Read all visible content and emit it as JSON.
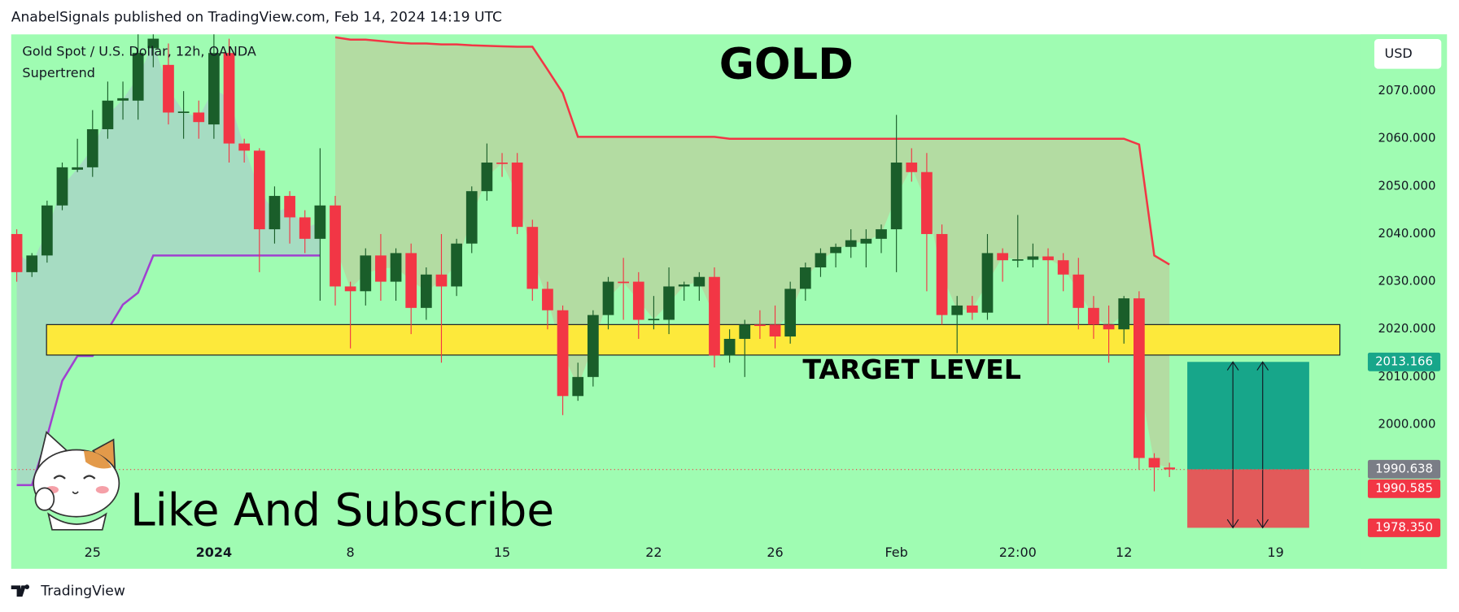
{
  "chart_data": {
    "type": "candlestick",
    "header": "AnabelSignals published on TradingView.com, Feb 14, 2024 14:19 UTC",
    "instrument": "Gold Spot / U.S. Dollar, 12h, OANDA",
    "indicator": "Supertrend",
    "title": "GOLD",
    "caption": "Like And Subscribe",
    "currency": "USD",
    "footer": "TradingView",
    "up_color": "#1a5e2a",
    "down_color": "#f23645",
    "background": "#9ffcb2",
    "ylim": [
      1975.6,
      2081.9
    ],
    "yticks": [
      {
        "value": 2000,
        "label": "2000.000"
      },
      {
        "value": 2010,
        "label": "2010.000"
      },
      {
        "value": 2020,
        "label": "2020.000"
      },
      {
        "value": 2030,
        "label": "2030.000"
      },
      {
        "value": 2040,
        "label": "2040.000"
      },
      {
        "value": 2050,
        "label": "2050.000"
      },
      {
        "value": 2060,
        "label": "2060.000"
      },
      {
        "value": 2070,
        "label": "2070.000"
      }
    ],
    "categories": [
      null,
      null,
      null,
      null,
      null,
      "25",
      null,
      null,
      null,
      null,
      null,
      null,
      null,
      "2024",
      null,
      null,
      null,
      null,
      null,
      null,
      null,
      null,
      "8",
      null,
      null,
      null,
      null,
      null,
      null,
      null,
      null,
      null,
      "15",
      null,
      null,
      null,
      null,
      null,
      null,
      null,
      null,
      null,
      "22",
      null,
      null,
      null,
      null,
      null,
      null,
      null,
      "26",
      null,
      null,
      null,
      null,
      null,
      null,
      null,
      "Feb",
      null,
      null,
      null,
      null,
      null,
      null,
      null,
      "22:00",
      null,
      null,
      null,
      null,
      null,
      null,
      "12",
      null,
      null,
      null,
      null,
      null,
      null,
      null,
      null,
      null,
      "19",
      null,
      null,
      null,
      null,
      null,
      null
    ],
    "candles": [
      [
        2040,
        2041,
        2030,
        2032
      ],
      [
        2032,
        2036,
        2031,
        2035.5
      ],
      [
        2035.5,
        2047,
        2034,
        2046
      ],
      [
        2046,
        2055,
        2045,
        2054
      ],
      [
        2053.5,
        2060,
        2053,
        2054
      ],
      [
        2054,
        2066,
        2052,
        2062
      ],
      [
        2062,
        2072,
        2060,
        2068
      ],
      [
        2068,
        2072,
        2064,
        2068.5
      ],
      [
        2068,
        2083,
        2064,
        2078
      ],
      [
        2079,
        2086,
        2075,
        2081
      ],
      [
        2075.5,
        2080,
        2063,
        2065.5
      ],
      [
        2065.5,
        2070,
        2060,
        2065.7
      ],
      [
        2065.5,
        2068,
        2060,
        2063.5
      ],
      [
        2063,
        2082,
        2060,
        2078
      ],
      [
        2078,
        2081,
        2055,
        2059
      ],
      [
        2059,
        2060,
        2055,
        2057.5
      ],
      [
        2057.5,
        2058,
        2032,
        2041
      ],
      [
        2041,
        2050,
        2038,
        2048
      ],
      [
        2048,
        2049,
        2038,
        2043.5
      ],
      [
        2043.5,
        2045,
        2036,
        2039
      ],
      [
        2039,
        2058,
        2026,
        2046
      ],
      [
        2046,
        2048,
        2025,
        2029
      ],
      [
        2029,
        2030,
        2016,
        2028
      ],
      [
        2028,
        2037,
        2025,
        2035.5
      ],
      [
        2035.5,
        2040,
        2026,
        2030
      ],
      [
        2030,
        2037,
        2026,
        2036
      ],
      [
        2036,
        2038,
        2019,
        2024.5
      ],
      [
        2024.5,
        2033,
        2022,
        2031.5
      ],
      [
        2031.5,
        2040,
        2013,
        2029
      ],
      [
        2029,
        2039,
        2027,
        2038
      ],
      [
        2038,
        2050,
        2036,
        2049
      ],
      [
        2049,
        2059,
        2047,
        2055
      ],
      [
        2055,
        2057,
        2052,
        2054.8
      ],
      [
        2055,
        2057,
        2040,
        2041.5
      ],
      [
        2041.5,
        2043,
        2026,
        2028.5
      ],
      [
        2028.5,
        2030,
        2020,
        2024
      ],
      [
        2024,
        2025,
        2002,
        2006
      ],
      [
        2006,
        2013,
        2005,
        2010
      ],
      [
        2010,
        2024,
        2008,
        2023
      ],
      [
        2023,
        2031,
        2020,
        2030
      ],
      [
        2030,
        2035,
        2022,
        2029.8
      ],
      [
        2030,
        2032,
        2018,
        2022
      ],
      [
        2022,
        2027,
        2020,
        2022.2
      ],
      [
        2022,
        2033,
        2019,
        2029
      ],
      [
        2029,
        2030,
        2026,
        2029.4
      ],
      [
        2029,
        2032,
        2026,
        2031
      ],
      [
        2031,
        2033,
        2012,
        2014.5
      ],
      [
        2014.5,
        2020,
        2013,
        2018
      ],
      [
        2018,
        2022,
        2010,
        2021
      ],
      [
        2021,
        2024,
        2018,
        2020.8
      ],
      [
        2021,
        2025,
        2016,
        2018.5
      ],
      [
        2018.5,
        2030,
        2017,
        2028.5
      ],
      [
        2028.5,
        2034,
        2026,
        2033
      ],
      [
        2033,
        2037,
        2031,
        2036
      ],
      [
        2036,
        2038,
        2033,
        2037.3
      ],
      [
        2037.3,
        2041,
        2035,
        2038.7
      ],
      [
        2038,
        2041,
        2033,
        2039
      ],
      [
        2039,
        2042,
        2036,
        2041
      ],
      [
        2041,
        2065,
        2032,
        2055
      ],
      [
        2055,
        2058,
        2051,
        2053
      ],
      [
        2053,
        2057,
        2028,
        2040
      ],
      [
        2040,
        2042,
        2021,
        2023
      ],
      [
        2023,
        2027,
        2015,
        2025
      ],
      [
        2025,
        2027,
        2022,
        2023.5
      ],
      [
        2023.5,
        2040,
        2022,
        2036
      ],
      [
        2036,
        2037,
        2030,
        2034.5
      ],
      [
        2034.5,
        2044,
        2033,
        2034.7
      ],
      [
        2034.6,
        2038,
        2033,
        2035.3
      ],
      [
        2035.3,
        2037,
        2021,
        2034.5
      ],
      [
        2034.5,
        2036,
        2028,
        2031.5
      ],
      [
        2031.5,
        2035,
        2020,
        2024.5
      ],
      [
        2024.5,
        2027,
        2018,
        2021
      ],
      [
        2021,
        2025,
        2013,
        2020
      ],
      [
        2020,
        2027,
        2017,
        2026.5
      ],
      [
        2026.5,
        2028,
        1990.5,
        1993
      ],
      [
        1993,
        1994,
        1986,
        1991
      ],
      [
        1991,
        1992,
        1989,
        1990.6
      ],
      null,
      null,
      null,
      null,
      null,
      null,
      null,
      null,
      null,
      null,
      null,
      null
    ],
    "supertrend_up": {
      "color": "#a040d0",
      "fill": "#a6dcc2",
      "values": [
        1987.3,
        1987.3,
        1997.5,
        2009.2,
        2014.4,
        2014.4,
        2019.9,
        2025.2,
        2027.7,
        2035.5,
        2035.5,
        2035.5,
        2035.5,
        2035.5,
        2035.5,
        2035.5,
        2035.5,
        2035.5,
        2035.5,
        2035.5,
        2035.5,
        null,
        null,
        null,
        null,
        null,
        null,
        null,
        null,
        null,
        null,
        null,
        null,
        null,
        null,
        null,
        null,
        null,
        null,
        null,
        null,
        null,
        null,
        null,
        null,
        null,
        null,
        null,
        null,
        null,
        null,
        null,
        null,
        null,
        null,
        null,
        null,
        null,
        null,
        null,
        null,
        null,
        null,
        null,
        null,
        null,
        null,
        null,
        null,
        null,
        null,
        null,
        null,
        null,
        null,
        null,
        null,
        null,
        null,
        null,
        null,
        null,
        null,
        null,
        null
      ]
    },
    "supertrend_down": {
      "color": "#f23645",
      "fill": "#b3dca2",
      "values": [
        null,
        null,
        null,
        null,
        null,
        null,
        null,
        null,
        null,
        null,
        null,
        null,
        null,
        null,
        null,
        null,
        null,
        null,
        null,
        null,
        null,
        2081.3,
        2080.8,
        2080.8,
        2080.5,
        2080.2,
        2080,
        2080,
        2079.8,
        2079.8,
        2079.6,
        2079.5,
        2079.4,
        2079.3,
        2079.3,
        2074.5,
        2069.6,
        2060.4,
        2060.4,
        2060.4,
        2060.4,
        2060.4,
        2060.4,
        2060.4,
        2060.4,
        2060.4,
        2060.4,
        2060,
        2060,
        2060,
        2060,
        2060,
        2060,
        2060,
        2060,
        2060,
        2060,
        2060,
        2060,
        2060,
        2060,
        2060,
        2060,
        2060,
        2060,
        2060,
        2060,
        2060,
        2060,
        2060,
        2060,
        2060,
        2060,
        2060,
        2058.8,
        2035.5,
        2033.6,
        null,
        null,
        null,
        null,
        null,
        null,
        null,
        null,
        null,
        null,
        null,
        null
      ]
    },
    "target_zone": {
      "label": "TARGET LEVEL",
      "low": 2014.6,
      "high": 2021,
      "color": "#fde93b"
    },
    "position": {
      "target": 2013.166,
      "entry": 1990.585,
      "stop": 1978.35,
      "profit_color": "#17a68a",
      "loss_color": "#e25a5a"
    },
    "price_labels": [
      {
        "value": 2013.166,
        "label": "2013.166",
        "color": "#17a68a"
      },
      {
        "value": 1990.638,
        "label": "1990.638",
        "color": "#7a7d86"
      },
      {
        "value": 1990.585,
        "label": "1990.585",
        "color": "#f23645"
      },
      {
        "value": 1978.35,
        "label": "1978.350",
        "color": "#f23645"
      }
    ]
  }
}
